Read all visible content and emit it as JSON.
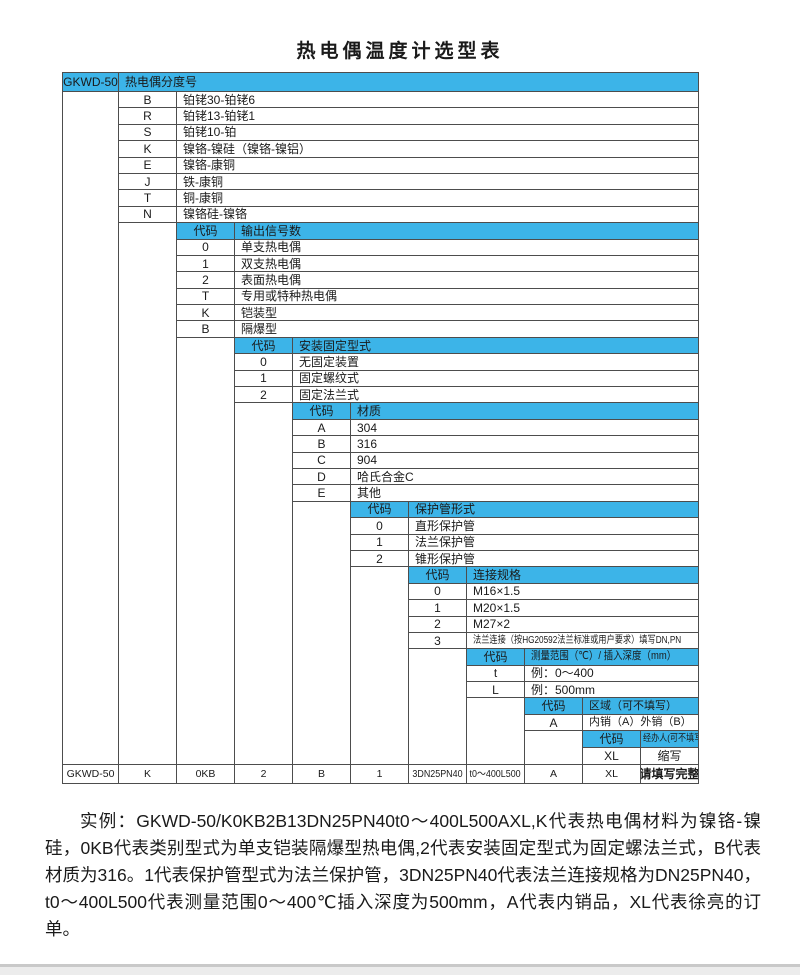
{
  "title": "热电偶温度计选型表",
  "colors": {
    "header_bg": "#3cb4e8",
    "border": "#4d4d4d",
    "text": "#1a1a1a",
    "footer_band": "#c9c9c9"
  },
  "table": {
    "model_label": "GKWD-50",
    "root_header": "热电偶分度号",
    "code_header": "代码",
    "sections": [
      {
        "header": null,
        "rows": [
          {
            "code": "B",
            "desc": "铂铑30-铂铑6"
          },
          {
            "code": "R",
            "desc": "铂铑13-铂铑1"
          },
          {
            "code": "S",
            "desc": "铂铑10-铂"
          },
          {
            "code": "K",
            "desc": "镍铬-镍硅（镍铬-镍铝）"
          },
          {
            "code": "E",
            "desc": "镍铬-康铜"
          },
          {
            "code": "J",
            "desc": "铁-康铜"
          },
          {
            "code": "T",
            "desc": "铜-康铜"
          },
          {
            "code": "N",
            "desc": "镍铬硅-镍铬"
          }
        ]
      },
      {
        "header": "输出信号数",
        "rows": [
          {
            "code": "0",
            "desc": "单支热电偶"
          },
          {
            "code": "1",
            "desc": "双支热电偶"
          },
          {
            "code": "2",
            "desc": "表面热电偶"
          },
          {
            "code": "T",
            "desc": "专用或特种热电偶"
          },
          {
            "code": "K",
            "desc": "铠装型"
          },
          {
            "code": "B",
            "desc": "隔爆型"
          }
        ]
      },
      {
        "header": "安装固定型式",
        "rows": [
          {
            "code": "0",
            "desc": "无固定装置"
          },
          {
            "code": "1",
            "desc": "固定螺纹式"
          },
          {
            "code": "2",
            "desc": "固定法兰式"
          }
        ]
      },
      {
        "header": "材质",
        "rows": [
          {
            "code": "A",
            "desc": "304"
          },
          {
            "code": "B",
            "desc": "316"
          },
          {
            "code": "C",
            "desc": "904"
          },
          {
            "code": "D",
            "desc": "哈氏合金C"
          },
          {
            "code": "E",
            "desc": "其他"
          }
        ]
      },
      {
        "header": "保护管形式",
        "rows": [
          {
            "code": "0",
            "desc": "直形保护管"
          },
          {
            "code": "1",
            "desc": "法兰保护管"
          },
          {
            "code": "2",
            "desc": "锥形保护管"
          }
        ]
      },
      {
        "header": "连接规格",
        "rows": [
          {
            "code": "0",
            "desc": "M16×1.5"
          },
          {
            "code": "1",
            "desc": "M20×1.5"
          },
          {
            "code": "2",
            "desc": "M27×2"
          },
          {
            "code": "3",
            "desc": "法兰连接（按HG20592法兰标准或用户要求）填写DN,PN"
          }
        ]
      },
      {
        "header": "测量范围（℃）/ 插入深度（mm）",
        "rows": [
          {
            "code": "t",
            "desc": "例：0～400"
          },
          {
            "code": "L",
            "desc": "例：500mm"
          }
        ]
      },
      {
        "header": "区域（可不填写）",
        "rows": [
          {
            "code": "A",
            "desc": "内销（A）外销（B）"
          }
        ]
      },
      {
        "header": "经办人(可不填写)",
        "rows": [
          {
            "code": "XL",
            "desc": "缩写"
          }
        ]
      }
    ],
    "summary_row": [
      "GKWD-50",
      "K",
      "0KB",
      "2",
      "B",
      "1",
      "3DN25PN40",
      "t0～400L500",
      "A",
      "XL",
      "请填写完整"
    ]
  },
  "example": {
    "text": "实例：GKWD-50/K0KB2B13DN25PN40t0～400L500AXL,K代表热电偶材料为镍铬-镍硅，0KB代表类别型式为单支铠装隔爆型热电偶,2代表安装固定型式为固定螺法兰式，B代表材质为316。1代表保护管型式为法兰保护管，3DN25PN40代表法兰连接规格为DN25PN40，t0～400L500代表测量范围0～400℃插入深度为500mm，A代表内销品，XL代表徐亮的订单。"
  }
}
